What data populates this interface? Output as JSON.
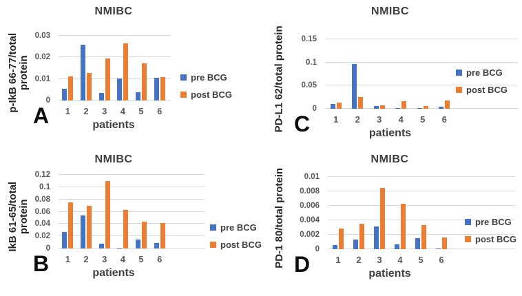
{
  "colors": {
    "pre_bcg": "#4472C4",
    "post_bcg": "#ED7D31",
    "gridline": "#D9D9D9",
    "tick_text": "#595959",
    "title_text": "#3F3F3F",
    "panel_letter": "#0D0D0D"
  },
  "chart_data": [
    {
      "id": "A",
      "type": "bar",
      "panel_label": "A",
      "title": "NMIBC",
      "ylabel": "p-IkB 66-77/total protein",
      "ylabel_lines": [
        "p-IkB 66-77/total",
        "protein"
      ],
      "xlabel": "patients",
      "categories": [
        "1",
        "2",
        "3",
        "4",
        "5",
        "6"
      ],
      "series": [
        {
          "name": "pre BCG",
          "values": [
            0.0055,
            0.026,
            0.0035,
            0.0103,
            0.0037,
            0.0104
          ]
        },
        {
          "name": "post BCG",
          "values": [
            0.0113,
            0.0127,
            0.0196,
            0.0265,
            0.0173,
            0.011
          ]
        }
      ],
      "ylim": [
        0,
        0.03
      ],
      "yticks": [
        0,
        0.01,
        0.02,
        0.03
      ],
      "ytick_labels": [
        "0",
        "0.01",
        "0.02",
        "0.03"
      ],
      "legend_position": "right",
      "grid": true
    },
    {
      "id": "B",
      "type": "bar",
      "panel_label": "B",
      "title": "NMIBC",
      "ylabel": "IkB 61-65/total protein",
      "ylabel_lines": [
        "IkB 61-65/total",
        "protein"
      ],
      "xlabel": "patients",
      "categories": [
        "1",
        "2",
        "3",
        "4",
        "5",
        "6"
      ],
      "series": [
        {
          "name": "pre BCG",
          "values": [
            0.027,
            0.054,
            0.008,
            0.001,
            0.015,
            0.009
          ]
        },
        {
          "name": "post BCG",
          "values": [
            0.075,
            0.069,
            0.11,
            0.063,
            0.044,
            0.041
          ]
        }
      ],
      "ylim": [
        0,
        0.12
      ],
      "yticks": [
        0,
        0.02,
        0.04,
        0.06,
        0.08,
        0.1,
        0.12
      ],
      "ytick_labels": [
        "0",
        "0.02",
        "0.04",
        "0.06",
        "0.08",
        "0.1",
        "0.12"
      ],
      "legend_position": "right",
      "grid": true
    },
    {
      "id": "C",
      "type": "bar",
      "panel_label": "C",
      "title": "NMIBC",
      "ylabel": "PD-L1 62/total protein",
      "ylabel_lines": [
        "PD-L1 62/total protein"
      ],
      "xlabel": "patients",
      "categories": [
        "1",
        "2",
        "3",
        "4",
        "5",
        "6"
      ],
      "series": [
        {
          "name": "pre BCG",
          "values": [
            0.011,
            0.096,
            0.006,
            0.001,
            0.001,
            0.005
          ]
        },
        {
          "name": "post BCG",
          "values": [
            0.013,
            0.025,
            0.008,
            0.016,
            0.006,
            0.018
          ]
        }
      ],
      "ylim": [
        0,
        0.15
      ],
      "yticks": [
        0,
        0.05,
        0.1,
        0.15
      ],
      "ytick_labels": [
        "0",
        "0.05",
        "0.1",
        "0.15"
      ],
      "legend_position": "right",
      "grid": true
    },
    {
      "id": "D",
      "type": "bar",
      "panel_label": "D",
      "title": "NMIBC",
      "ylabel": "PD-1 80/total protein",
      "ylabel_lines": [
        "PD-1 80/total protein"
      ],
      "xlabel": "patients",
      "categories": [
        "1",
        "2",
        "3",
        "4",
        "5",
        "6"
      ],
      "series": [
        {
          "name": "pre BCG",
          "values": [
            0.0006,
            0.0013,
            0.0031,
            0.0007,
            0.0015,
            0.0001
          ]
        },
        {
          "name": "post BCG",
          "values": [
            0.0029,
            0.0035,
            0.0085,
            0.0063,
            0.0033,
            0.0016
          ]
        }
      ],
      "ylim": [
        0,
        0.01
      ],
      "yticks": [
        0,
        0.002,
        0.004,
        0.006,
        0.008,
        0.01
      ],
      "ytick_labels": [
        "0",
        "0.002",
        "0.004",
        "0.006",
        "0.008",
        "0.01"
      ],
      "legend_position": "right",
      "grid": true
    }
  ]
}
